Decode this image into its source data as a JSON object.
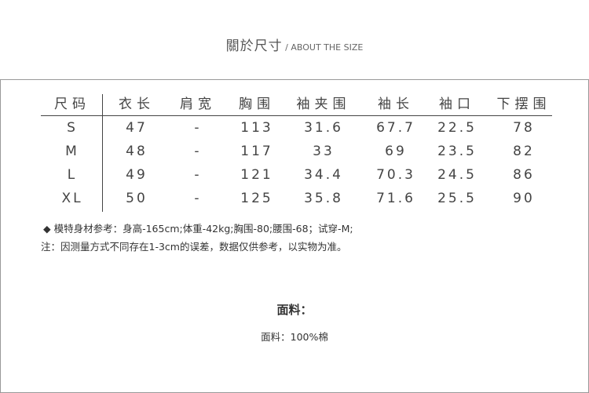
{
  "title": {
    "cn": "關於尺寸",
    "en": " / ABOUT THE SIZE"
  },
  "table": {
    "headers": [
      "尺码",
      "衣长",
      "肩宽",
      "胸围",
      "袖夹围",
      "袖长",
      "袖口",
      "下摆围"
    ],
    "rows": [
      [
        "S",
        "47",
        "-",
        "113",
        "31.6",
        "67.7",
        "22.5",
        "78"
      ],
      [
        "M",
        "48",
        "-",
        "117",
        "33",
        "69",
        "23.5",
        "82"
      ],
      [
        "L",
        "49",
        "-",
        "121",
        "34.4",
        "70.3",
        "24.5",
        "86"
      ],
      [
        "XL",
        "50",
        "-",
        "125",
        "35.8",
        "71.6",
        "25.5",
        "90"
      ]
    ]
  },
  "notes": {
    "model": "◆  模特身材参考：身高-165cm;体重-42kg;胸围-80;腰围-68；试穿-M;",
    "disclaimer": "注：因测量方式不同存在1-3cm的误差，数据仅供参考，以实物为准。"
  },
  "fabric": {
    "title": "面料：",
    "value": "面料：100%棉"
  }
}
